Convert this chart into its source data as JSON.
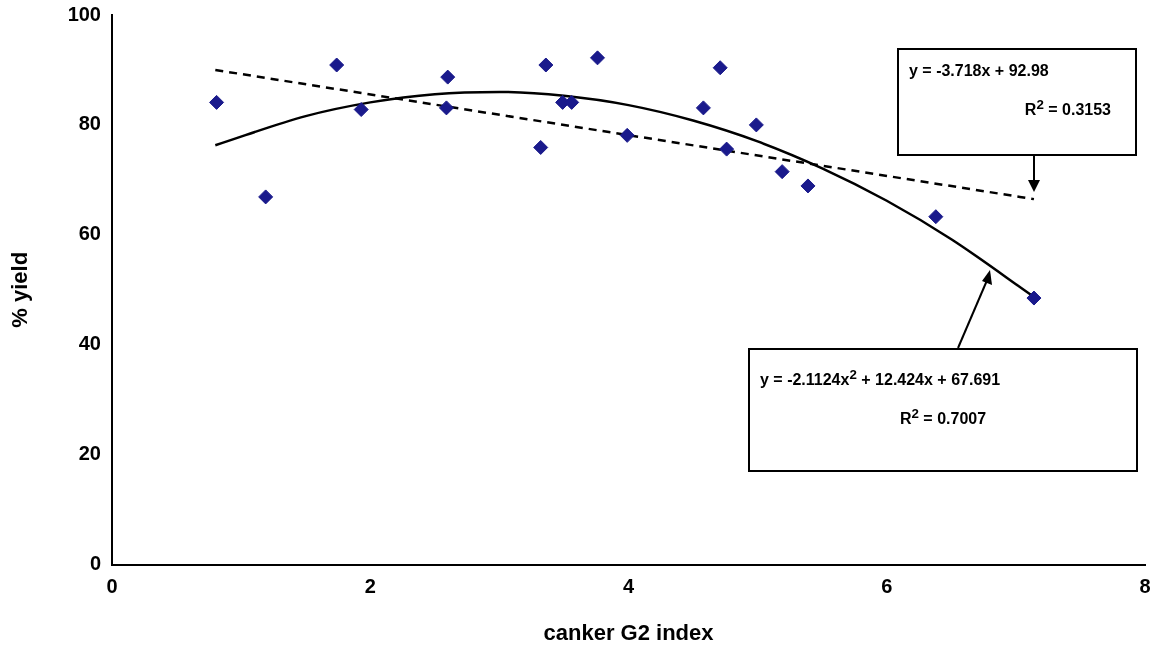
{
  "chart_data": {
    "type": "scatter",
    "xlabel": "canker G2 index",
    "ylabel": "% yield",
    "series": [
      {
        "color": "#1a1a8c",
        "marker": "diamond",
        "x": [
          0.81,
          1.19,
          1.74,
          1.93,
          2.59,
          2.6,
          3.32,
          3.36,
          3.49,
          3.56,
          3.76,
          3.99,
          4.58,
          4.71,
          4.76,
          4.99,
          5.19,
          5.39,
          6.38,
          7.14
        ],
        "values": [
          84.1,
          66.9,
          90.9,
          82.8,
          83.1,
          88.7,
          75.9,
          90.9,
          84.1,
          84.1,
          92.2,
          78.1,
          83.1,
          90.4,
          75.6,
          80,
          71.5,
          68.9,
          63.3,
          48.5
        ]
      },
      {
        "type": "line",
        "color": "#000000",
        "line_style": "dashed",
        "marker": "none",
        "x": [
          0.8,
          7.14
        ],
        "values": [
          90,
          66.5
        ]
      },
      {
        "type": "line",
        "color": "#000000",
        "line_style": "solid",
        "marker": "none",
        "x": [
          0.8,
          1.5,
          2,
          2.5,
          3,
          3.5,
          4,
          4.5,
          5,
          5.5,
          6,
          6.5,
          7.14
        ],
        "values": [
          76.3,
          81.6,
          84.1,
          85.6,
          86,
          85.3,
          83.6,
          80.8,
          77,
          72.1,
          66.2,
          59.2,
          48.7
        ]
      }
    ],
    "xlim": [
      0,
      8
    ],
    "xticks": [
      0,
      2,
      4,
      6,
      8
    ],
    "ylim": [
      0,
      100
    ],
    "yticks": [
      0,
      20,
      40,
      60,
      80,
      100
    ],
    "grid": false,
    "legend": false,
    "annotations": [
      "y = -3.718x + 92.98",
      "R$^{2}$ = 0.3153",
      "y = -2.1124x$^{2}$ + 12.424x + 67.691",
      "R$^{2}$ = 0.7007"
    ]
  }
}
